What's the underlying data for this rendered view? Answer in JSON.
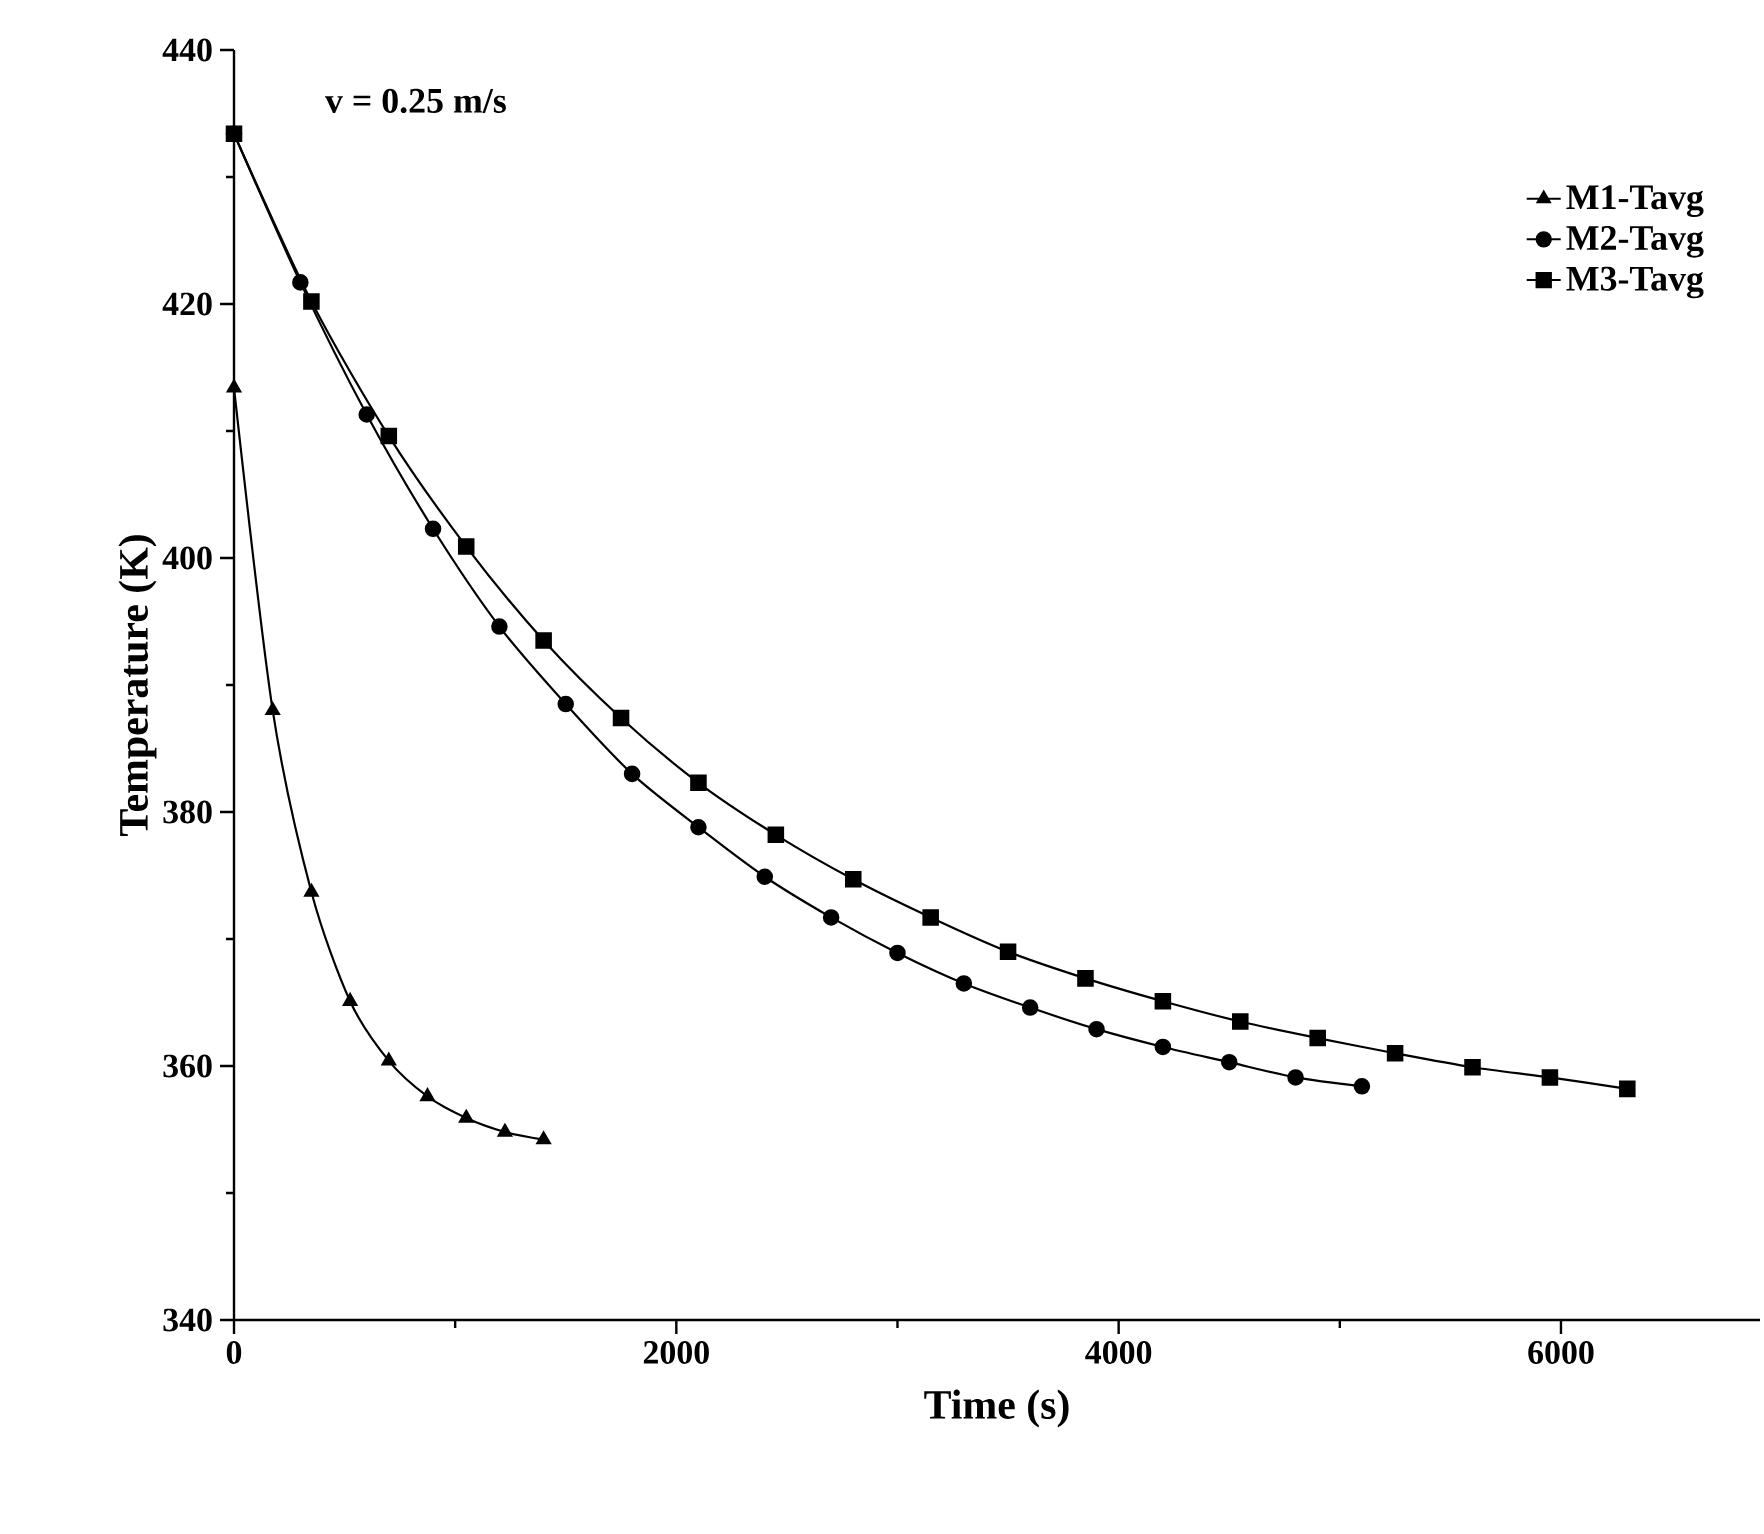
{
  "chart_data": {
    "type": "line",
    "xlabel": "Time (s)",
    "ylabel": "Temperature (K)",
    "annotations": [
      "v = 0.25 m/s"
    ],
    "xlim": [
      0,
      6900
    ],
    "ylim": [
      340,
      440
    ],
    "xticks": [
      0,
      2000,
      4000,
      6000
    ],
    "yticks": [
      340,
      360,
      380,
      400,
      420,
      440
    ],
    "legend": "top right",
    "grid": false,
    "line_style": "solid",
    "series": [
      {
        "name": "M1-Tavg",
        "color": "#000000",
        "marker": "triangle",
        "x": [
          0,
          175,
          350,
          525,
          700,
          875,
          1050,
          1225,
          1400
        ],
        "values": [
          413.4,
          388,
          373.7,
          365.1,
          360.4,
          357.6,
          355.9,
          354.8,
          354.2
        ]
      },
      {
        "name": "M2-Tavg",
        "color": "#000000",
        "marker": "circle",
        "x": [
          0,
          300,
          600,
          900,
          1200,
          1500,
          1800,
          2100,
          2400,
          2700,
          3000,
          3300,
          3600,
          3900,
          4200,
          4500,
          4800,
          5100
        ],
        "values": [
          433.4,
          421.7,
          411.3,
          402.3,
          394.6,
          388.5,
          383.0,
          378.8,
          374.9,
          371.7,
          368.9,
          366.5,
          364.6,
          362.9,
          361.5,
          360.3,
          359.1,
          358.4
        ]
      },
      {
        "name": "M3-Tavg",
        "color": "#000000",
        "marker": "square",
        "x": [
          0,
          350,
          700,
          1050,
          1400,
          1750,
          2100,
          2450,
          2800,
          3150,
          3500,
          3850,
          4200,
          4550,
          4900,
          5250,
          5600,
          5950,
          6300
        ],
        "values": [
          433.4,
          420.2,
          409.6,
          400.9,
          393.5,
          387.4,
          382.3,
          378.2,
          374.7,
          371.7,
          369.0,
          366.9,
          365.1,
          363.5,
          362.2,
          361.0,
          359.9,
          359.1,
          358.2
        ]
      }
    ]
  }
}
